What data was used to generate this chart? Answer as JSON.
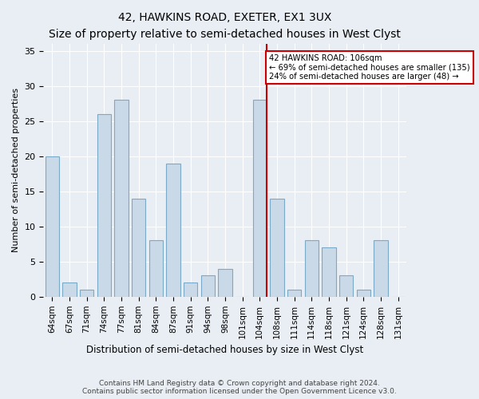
{
  "title": "42, HAWKINS ROAD, EXETER, EX1 3UX",
  "subtitle": "Size of property relative to semi-detached houses in West Clyst",
  "xlabel": "Distribution of semi-detached houses by size in West Clyst",
  "ylabel": "Number of semi-detached properties",
  "categories": [
    "64sqm",
    "67sqm",
    "71sqm",
    "74sqm",
    "77sqm",
    "81sqm",
    "84sqm",
    "87sqm",
    "91sqm",
    "94sqm",
    "98sqm",
    "101sqm",
    "104sqm",
    "108sqm",
    "111sqm",
    "114sqm",
    "118sqm",
    "121sqm",
    "124sqm",
    "128sqm",
    "131sqm"
  ],
  "values": [
    20,
    2,
    1,
    26,
    28,
    14,
    8,
    19,
    2,
    3,
    4,
    0,
    28,
    14,
    1,
    8,
    7,
    3,
    1,
    8,
    0
  ],
  "bar_color": "#c9d9e8",
  "bar_edge_color": "#7aaac8",
  "highlight_index": 12,
  "annotation_title": "42 HAWKINS ROAD: 106sqm",
  "annotation_line1": "← 69% of semi-detached houses are smaller (135)",
  "annotation_line2": "24% of semi-detached houses are larger (48) →",
  "annotation_box_color": "#cc0000",
  "ylim": [
    0,
    36
  ],
  "yticks": [
    0,
    5,
    10,
    15,
    20,
    25,
    30,
    35
  ],
  "footer_line1": "Contains HM Land Registry data © Crown copyright and database right 2024.",
  "footer_line2": "Contains public sector information licensed under the Open Government Licence v3.0.",
  "background_color": "#e8eef4"
}
